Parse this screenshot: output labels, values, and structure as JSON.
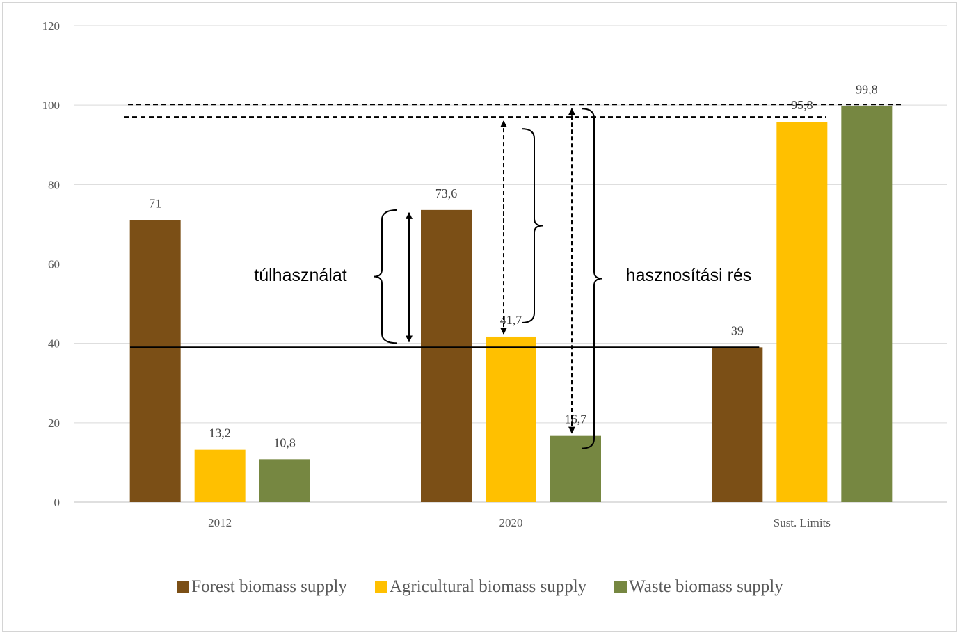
{
  "chart_data": {
    "type": "bar",
    "categories": [
      "2012",
      "2020",
      "Sust. Limits"
    ],
    "series": [
      {
        "name": "Forest biomass supply",
        "color": "#7b4f16",
        "values": [
          71,
          73.6,
          39
        ],
        "labels": [
          "71",
          "73,6",
          "39"
        ]
      },
      {
        "name": "Agricultural biomass supply",
        "color": "#ffc000",
        "values": [
          13.2,
          41.7,
          95.8
        ],
        "labels": [
          "13,2",
          "41,7",
          "95,8"
        ]
      },
      {
        "name": "Waste biomass supply",
        "color": "#768741",
        "values": [
          10.8,
          16.7,
          99.8
        ],
        "labels": [
          "10,8",
          "16,7",
          "99,8"
        ]
      }
    ],
    "ylim": [
      0,
      120
    ],
    "yticks": [
      "0",
      "20",
      "40",
      "60",
      "80",
      "100",
      "120"
    ],
    "grid": true,
    "legend_position": "bottom",
    "annotations": {
      "overuse_label": "túlhasználat",
      "gap_label": "hasznosítási rés"
    }
  }
}
